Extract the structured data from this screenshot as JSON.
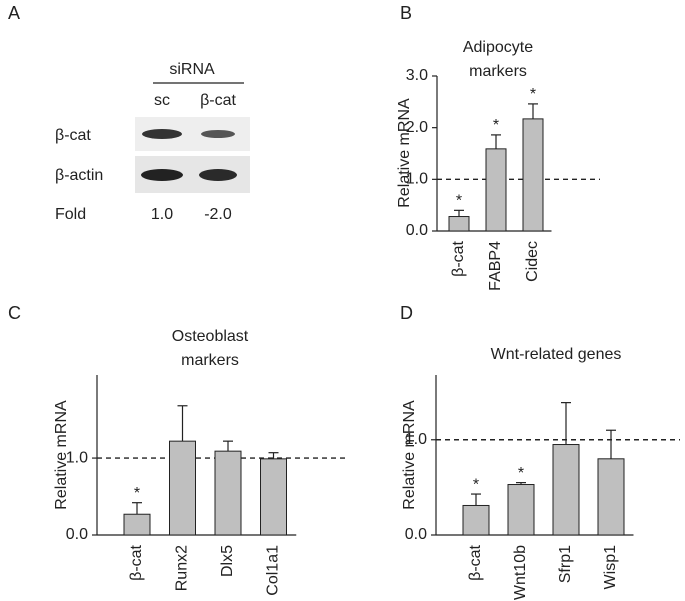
{
  "panel_labels": [
    "A",
    "B",
    "C",
    "D"
  ],
  "blot": {
    "group_label": "siRNA",
    "lanes": [
      "sc",
      "β-cat"
    ],
    "rows": [
      "β-cat",
      "β-actin"
    ],
    "fold_label": "Fold",
    "fold_values": [
      "1.0",
      "-2.0"
    ]
  },
  "chart_data": [
    {
      "type": "bar",
      "title": [
        "Adipocyte",
        "markers"
      ],
      "y_label": "Relative mRNA",
      "categories": [
        "β-cat",
        "FABP4",
        "Cidec"
      ],
      "values": [
        0.28,
        1.59,
        2.17
      ],
      "errors": [
        0.12,
        0.27,
        0.29
      ],
      "significance": [
        "*",
        "*",
        "*"
      ],
      "reference_line": 1,
      "color": "#bfbfbf",
      "ylim": [
        0,
        3
      ],
      "yticks": [
        {
          "value": 0,
          "label": "0.0"
        },
        {
          "value": 1,
          "label": "1.0"
        },
        {
          "value": 2,
          "label": "2.0"
        },
        {
          "value": 3,
          "label": "3.0"
        }
      ]
    },
    {
      "type": "bar",
      "title": [
        "Osteoblast",
        "markers"
      ],
      "y_label": "Relative mRNA",
      "categories": [
        "β-cat",
        "Runx2",
        "Dlx5",
        "Col1a1"
      ],
      "values": [
        0.27,
        1.22,
        1.09,
        0.99
      ],
      "errors": [
        0.15,
        0.46,
        0.13,
        0.08
      ],
      "significance": [
        "*",
        null,
        null,
        null
      ],
      "reference_line": 1,
      "color": "#bfbfbf",
      "ylim": [
        0,
        2.08
      ],
      "yticks": [
        {
          "value": 0,
          "label": "0.0"
        },
        {
          "value": 1,
          "label": "1.0"
        }
      ]
    },
    {
      "type": "bar",
      "title": [
        "Wnt-related genes"
      ],
      "y_label": "Relative mRNA",
      "categories": [
        "β-cat",
        "Wnt10b",
        "Sfrp1",
        "Wisp1"
      ],
      "values": [
        0.31,
        0.53,
        0.95,
        0.8
      ],
      "errors": [
        0.12,
        0.02,
        0.44,
        0.3
      ],
      "significance": [
        "*",
        "*",
        null,
        null
      ],
      "reference_line": 1,
      "color": "#bfbfbf",
      "ylim": [
        0,
        1.68
      ],
      "yticks": [
        {
          "value": 0,
          "label": "0.0"
        },
        {
          "value": 1,
          "label": "1.0"
        }
      ]
    }
  ]
}
